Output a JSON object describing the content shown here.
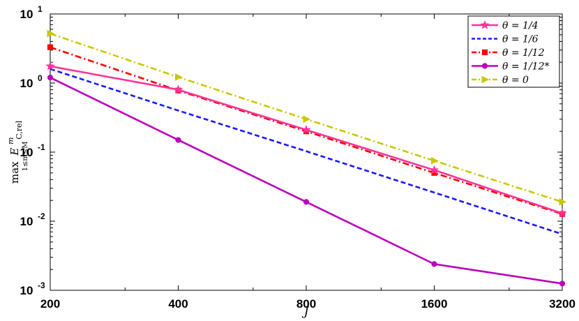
{
  "chart_data": {
    "type": "line",
    "xscale": "log2",
    "yscale": "log10",
    "x": [
      200,
      400,
      800,
      1600,
      3200
    ],
    "xticks": [
      "200",
      "400",
      "800",
      "1600",
      "3200"
    ],
    "xlim": [
      200,
      3200
    ],
    "ylim": [
      0.001,
      10
    ],
    "yticks": [
      {
        "value": 0.001,
        "base": "10",
        "exp": "-3"
      },
      {
        "value": 0.01,
        "base": "10",
        "exp": "-2"
      },
      {
        "value": 0.1,
        "base": "10",
        "exp": "-1"
      },
      {
        "value": 1,
        "base": "10",
        "exp": "0"
      },
      {
        "value": 10,
        "base": "10",
        "exp": "1"
      }
    ],
    "xlabel": "J",
    "ylabel": {
      "main": "max",
      "sub": "1≤m≤M",
      "expr": "E",
      "sup": "m",
      "exprsub": "C,rel"
    },
    "legend_position": "top-right",
    "grid": false,
    "series": [
      {
        "name": "θ = 1/4",
        "color": "#ff3399",
        "dash": "solid",
        "marker": "star",
        "values": [
          1.75,
          0.8,
          0.21,
          0.055,
          0.013
        ]
      },
      {
        "name": "θ = 1/6",
        "color": "#1a1aff",
        "dash": "dashed",
        "marker": "none",
        "values": [
          1.6,
          0.4,
          0.103,
          0.026,
          0.0065
        ]
      },
      {
        "name": "θ = 1/12",
        "color": "#ff0000",
        "dash": "dashdot",
        "marker": "square",
        "values": [
          3.3,
          0.78,
          0.2,
          0.05,
          0.0127
        ]
      },
      {
        "name": "θ = 1/12*",
        "color": "#bb00bb",
        "dash": "solid",
        "marker": "circle",
        "values": [
          1.2,
          0.15,
          0.019,
          0.0024,
          0.00125
        ]
      },
      {
        "name": "θ = 0",
        "color": "#c8c800",
        "dash": "dashdot",
        "marker": "triangle-right",
        "values": [
          5.2,
          1.22,
          0.3,
          0.075,
          0.019
        ]
      }
    ]
  }
}
